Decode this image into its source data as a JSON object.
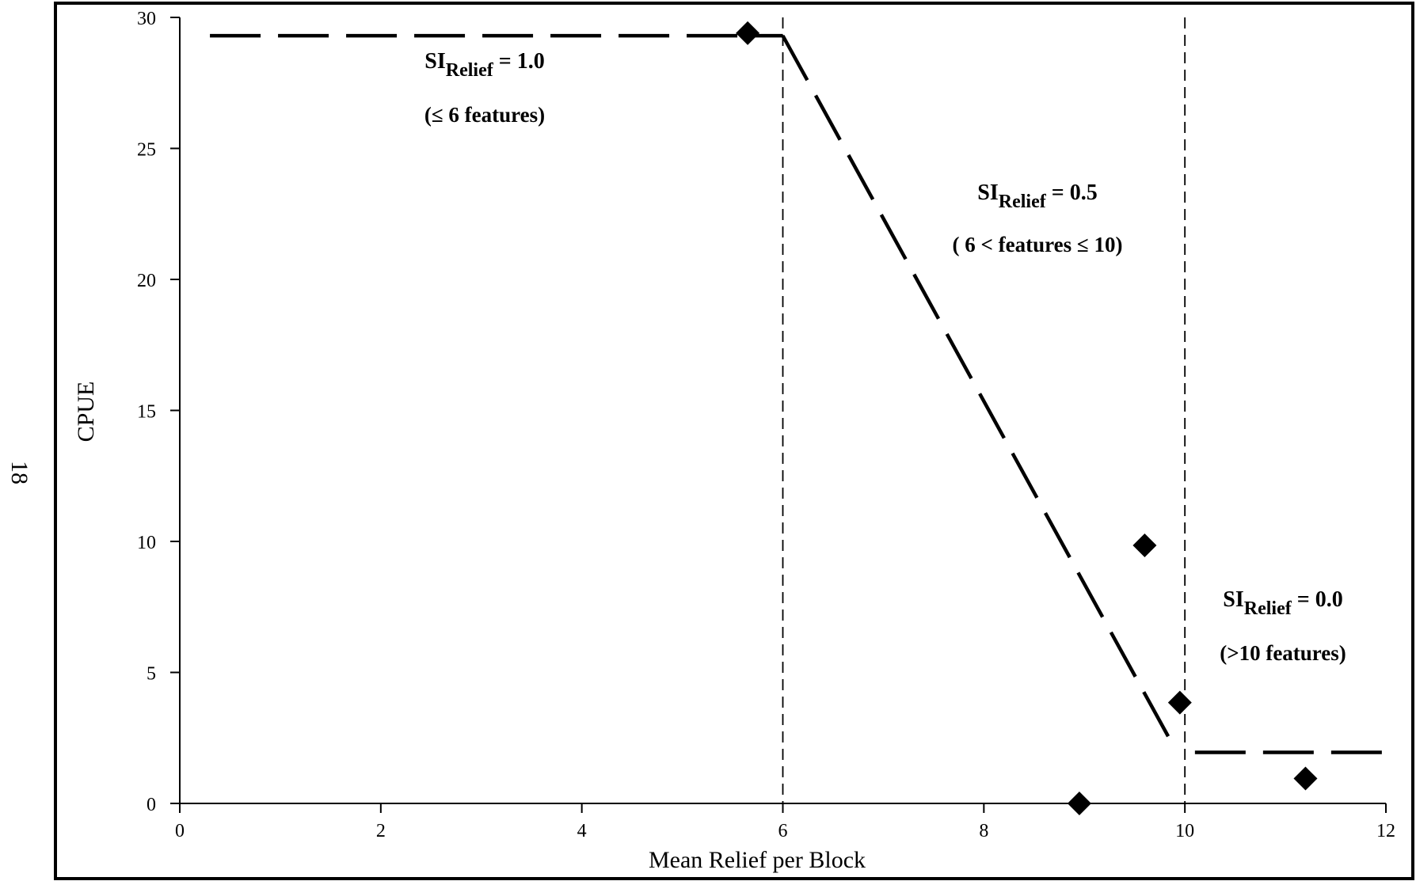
{
  "page_number": "18",
  "chart_data": {
    "type": "scatter",
    "xlabel": "Mean Relief per Block",
    "ylabel": "CPUE",
    "xlim": [
      0,
      12
    ],
    "ylim": [
      0,
      30
    ],
    "x_ticks": [
      0,
      2,
      4,
      6,
      8,
      10,
      12
    ],
    "y_ticks": [
      0,
      5,
      10,
      15,
      20,
      25,
      30
    ],
    "grid": false,
    "points": [
      {
        "x": 5.65,
        "y": 29.4
      },
      {
        "x": 8.95,
        "y": 0.0
      },
      {
        "x": 9.6,
        "y": 9.85
      },
      {
        "x": 9.95,
        "y": 3.85
      },
      {
        "x": 11.2,
        "y": 0.95
      }
    ],
    "fit_segments": [
      {
        "x": [
          0.3,
          6.0
        ],
        "y": [
          29.3,
          29.3
        ]
      },
      {
        "x": [
          6.0,
          9.9
        ],
        "y": [
          29.3,
          2.1
        ]
      },
      {
        "x": [
          10.1,
          12.0
        ],
        "y": [
          1.95,
          1.95
        ]
      }
    ],
    "threshold_lines": [
      6,
      10
    ],
    "annotations": [
      {
        "base": "SI",
        "sub": "Relief",
        "value": " = 1.0",
        "range": "(≤ 6 features)"
      },
      {
        "base": "SI",
        "sub": "Relief",
        "value": " = 0.5",
        "range": "( 6 < features ≤ 10)"
      },
      {
        "base": "SI",
        "sub": "Relief",
        "value": " = 0.0",
        "range": "(>10 features)"
      }
    ]
  }
}
